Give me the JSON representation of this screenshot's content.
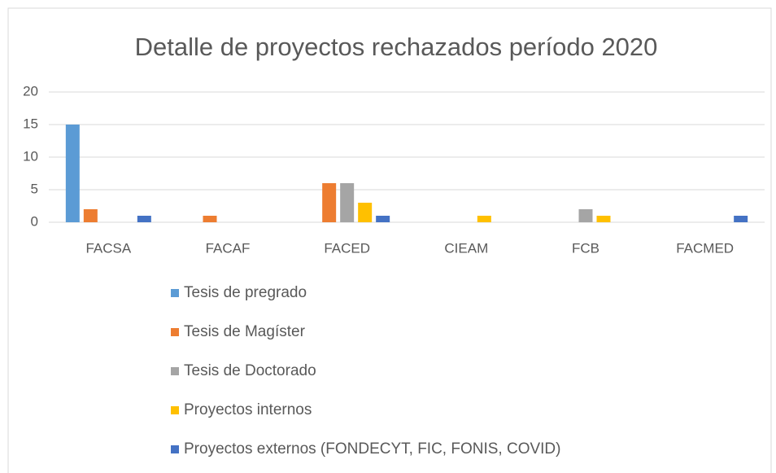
{
  "chart_data": {
    "type": "bar",
    "title": "Detalle de proyectos rechazados período 2020",
    "categories": [
      "FACSA",
      "FACAF",
      "FACED",
      "CIEAM",
      "FCB",
      "FACMED"
    ],
    "series": [
      {
        "name": "Tesis de pregrado",
        "color": "#5b9bd5",
        "values": [
          15,
          0,
          0,
          0,
          0,
          0
        ]
      },
      {
        "name": "Tesis de Magíster",
        "color": "#ed7d31",
        "values": [
          2,
          1,
          6,
          0,
          0,
          0
        ]
      },
      {
        "name": "Tesis de Doctorado",
        "color": "#a5a5a5",
        "values": [
          0,
          0,
          6,
          0,
          2,
          0
        ]
      },
      {
        "name": "Proyectos internos",
        "color": "#ffc000",
        "values": [
          0,
          0,
          3,
          1,
          1,
          0
        ]
      },
      {
        "name": "Proyectos externos (FONDECYT, FIC, FONIS, COVID)",
        "color": "#4472c4",
        "values": [
          1,
          0,
          1,
          0,
          0,
          1
        ]
      }
    ],
    "ylim": [
      0,
      20
    ],
    "yticks": [
      0,
      5,
      10,
      15,
      20
    ],
    "grid": true,
    "legend": "bottom"
  }
}
